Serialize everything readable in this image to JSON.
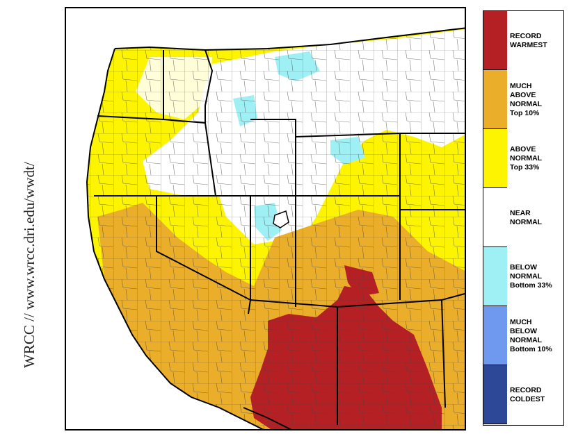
{
  "credit": "WRCC // www.wrcc.dri.edu/wwdt/",
  "legend": [
    {
      "lines": [
        "RECORD",
        "WARMEST"
      ],
      "color": "#b52025"
    },
    {
      "lines": [
        "MUCH",
        "ABOVE",
        "NORMAL",
        "Top 10%"
      ],
      "color": "#ebae2a"
    },
    {
      "lines": [
        "ABOVE",
        "NORMAL",
        "Top 33%"
      ],
      "color": "#fcf400"
    },
    {
      "lines": [
        "NEAR",
        "NORMAL"
      ],
      "color": "#ffffff"
    },
    {
      "lines": [
        "BELOW",
        "NORMAL",
        "Bottom 33%"
      ],
      "color": "#9ff0f5"
    },
    {
      "lines": [
        "MUCH",
        "BELOW",
        "NORMAL",
        "Bottom 10%"
      ],
      "color": "#6f99ef"
    },
    {
      "lines": [
        "RECORD",
        "COLDEST"
      ],
      "color": "#2e4898"
    }
  ],
  "map": {
    "region": "western-united-states",
    "colors": {
      "record_warmest": "#b52025",
      "much_above": "#ebae2a",
      "above": "#fcf400",
      "near": "#ffffff",
      "below": "#9ff0f5",
      "water": "#ffffff",
      "border": "#000000"
    }
  }
}
